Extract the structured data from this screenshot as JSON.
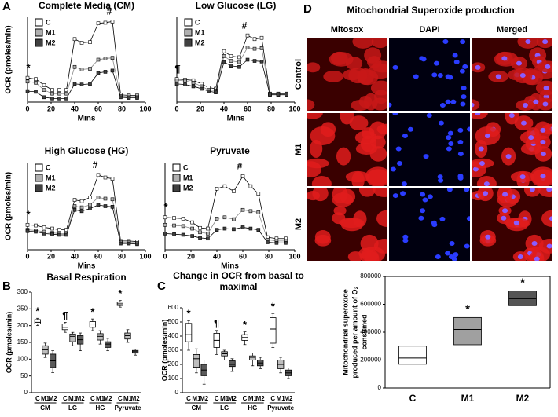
{
  "panel_labels": [
    "A",
    "B",
    "C",
    "D"
  ],
  "image_panel": {
    "title": "Mitochondrial Superoxide production",
    "columns": [
      "Mitosox",
      "DAPI",
      "Merged"
    ],
    "rows": [
      "Control",
      "M1",
      "M2"
    ]
  },
  "chart_data": [
    {
      "type": "line",
      "title": "Complete Media (CM)",
      "xlabel": "Mins",
      "ylabel": "OCR (pmoles/min)",
      "xlim": [
        0,
        100
      ],
      "xticks": [
        0,
        20,
        40,
        60,
        80,
        100
      ],
      "ylim": [
        0,
        700
      ],
      "x": [
        0,
        7,
        14,
        21,
        27,
        33,
        40,
        46,
        53,
        60,
        66,
        72,
        79,
        86,
        93
      ],
      "series": [
        {
          "name": "C",
          "color": "#ffffff",
          "values": [
            200,
            190,
            140,
            100,
            100,
            100,
            520,
            490,
            495,
            650,
            655,
            665,
            60,
            55,
            55
          ]
        },
        {
          "name": "M1",
          "color": "#b0b0b0",
          "values": [
            170,
            160,
            100,
            70,
            70,
            70,
            290,
            270,
            275,
            350,
            360,
            365,
            50,
            45,
            45
          ]
        },
        {
          "name": "M2",
          "color": "#404040",
          "values": [
            90,
            85,
            40,
            30,
            30,
            30,
            150,
            145,
            150,
            240,
            250,
            260,
            40,
            35,
            35
          ]
        }
      ],
      "start_marker": "*",
      "peak_marker": "#"
    },
    {
      "type": "line",
      "title": "Low Glucose (LG)",
      "xlabel": "Mins",
      "xlim": [
        0,
        100
      ],
      "xticks": [
        0,
        20,
        40,
        60,
        80,
        100
      ],
      "ylim": [
        0,
        700
      ],
      "x": [
        0,
        7,
        14,
        21,
        27,
        33,
        40,
        46,
        53,
        60,
        66,
        72,
        79,
        86,
        93
      ],
      "series": [
        {
          "name": "C",
          "color": "#ffffff",
          "values": [
            190,
            185,
            180,
            150,
            120,
            110,
            420,
            380,
            370,
            550,
            520,
            530,
            70,
            70,
            70
          ]
        },
        {
          "name": "M1",
          "color": "#b0b0b0",
          "values": [
            180,
            175,
            160,
            130,
            100,
            95,
            380,
            340,
            330,
            450,
            440,
            445,
            65,
            65,
            65
          ]
        },
        {
          "name": "M2",
          "color": "#404040",
          "values": [
            150,
            145,
            130,
            110,
            90,
            80,
            330,
            300,
            290,
            350,
            340,
            335,
            60,
            60,
            60
          ]
        }
      ],
      "start_marker": "¶",
      "peak_marker": "#"
    },
    {
      "type": "line",
      "title": "High Glucose (HG)",
      "xlabel": "Mins",
      "ylabel": "OCR (pmoles/min)",
      "xlim": [
        0,
        100
      ],
      "xticks": [
        0,
        20,
        40,
        60,
        80,
        100
      ],
      "ylim": [
        0,
        700
      ],
      "x": [
        0,
        7,
        14,
        21,
        27,
        33,
        40,
        46,
        53,
        60,
        66,
        72,
        79,
        86,
        93
      ],
      "series": [
        {
          "name": "C",
          "color": "#ffffff",
          "values": [
            200,
            195,
            180,
            170,
            160,
            160,
            400,
            390,
            420,
            600,
            580,
            570,
            70,
            70,
            65
          ]
        },
        {
          "name": "M1",
          "color": "#b0b0b0",
          "values": [
            160,
            155,
            145,
            135,
            130,
            130,
            350,
            340,
            360,
            420,
            410,
            405,
            60,
            60,
            55
          ]
        },
        {
          "name": "M2",
          "color": "#404040",
          "values": [
            150,
            145,
            130,
            125,
            120,
            120,
            320,
            310,
            330,
            360,
            350,
            345,
            50,
            50,
            45
          ]
        }
      ],
      "start_marker": "*",
      "peak_marker": "#"
    },
    {
      "type": "line",
      "title": "Pyruvate",
      "xlabel": "Mins",
      "xlim": [
        0,
        100
      ],
      "xticks": [
        0,
        20,
        40,
        60,
        80,
        100
      ],
      "ylim": [
        0,
        700
      ],
      "x": [
        0,
        7,
        14,
        21,
        27,
        33,
        40,
        46,
        53,
        60,
        66,
        72,
        79,
        86,
        93
      ],
      "series": [
        {
          "name": "C",
          "color": "#ffffff",
          "values": [
            260,
            255,
            250,
            220,
            175,
            170,
            490,
            510,
            470,
            590,
            510,
            450,
            100,
            90,
            90
          ]
        },
        {
          "name": "M1",
          "color": "#b0b0b0",
          "values": [
            200,
            195,
            190,
            170,
            140,
            130,
            250,
            260,
            245,
            320,
            310,
            300,
            80,
            70,
            70
          ]
        },
        {
          "name": "M2",
          "color": "#404040",
          "values": [
            130,
            125,
            120,
            110,
            95,
            90,
            160,
            170,
            165,
            180,
            170,
            160,
            60,
            55,
            55
          ]
        }
      ],
      "start_marker": "*",
      "peak_marker": "#"
    },
    {
      "type": "box",
      "title": "Basal Respiration",
      "ylabel": "OCR (pmoles/min)",
      "ylim": [
        0,
        300
      ],
      "yticks": [
        0,
        50,
        100,
        150,
        200,
        250,
        300
      ],
      "categories": [
        "CM",
        "LG",
        "HG",
        "Pyruvate"
      ],
      "annotations": [
        "*",
        "¶",
        "*",
        "*"
      ],
      "series": [
        {
          "name": "C",
          "color": "#ffffff",
          "boxes": [
            {
              "min": 200,
              "q1": 205,
              "median": 210,
              "q3": 218,
              "max": 222
            },
            {
              "min": 180,
              "q1": 188,
              "median": 195,
              "q3": 205,
              "max": 210
            },
            {
              "min": 185,
              "q1": 195,
              "median": 205,
              "q3": 212,
              "max": 220
            },
            {
              "min": 255,
              "q1": 260,
              "median": 265,
              "q3": 270,
              "max": 275
            }
          ]
        },
        {
          "name": "M1",
          "color": "#bdbdbd",
          "boxes": [
            {
              "min": 105,
              "q1": 115,
              "median": 128,
              "q3": 140,
              "max": 148
            },
            {
              "min": 140,
              "q1": 152,
              "median": 168,
              "q3": 175,
              "max": 180
            },
            {
              "min": 145,
              "q1": 157,
              "median": 168,
              "q3": 176,
              "max": 185
            },
            {
              "min": 150,
              "q1": 160,
              "median": 170,
              "q3": 178,
              "max": 188
            }
          ]
        },
        {
          "name": "M2",
          "color": "#5a5a5a",
          "boxes": [
            {
              "min": 60,
              "q1": 75,
              "median": 95,
              "q3": 115,
              "max": 125
            },
            {
              "min": 125,
              "q1": 145,
              "median": 158,
              "q3": 170,
              "max": 178
            },
            {
              "min": 125,
              "q1": 135,
              "median": 145,
              "q3": 152,
              "max": 162
            },
            {
              "min": 112,
              "q1": 118,
              "median": 122,
              "q3": 126,
              "max": 130
            }
          ]
        }
      ]
    },
    {
      "type": "box",
      "title": [
        "Change in OCR from basal to",
        "maximal"
      ],
      "ylabel": "OCR (pmoles/min)",
      "ylim": [
        0,
        600
      ],
      "yticks": [
        0,
        100,
        200,
        300,
        400,
        500,
        600
      ],
      "categories": [
        "CM",
        "LG",
        "HG",
        "Pyruvate"
      ],
      "annotations": [
        "*",
        "¶",
        "*",
        "*"
      ],
      "series": [
        {
          "name": "C",
          "color": "#ffffff",
          "boxes": [
            {
              "min": 300,
              "q1": 360,
              "median": 410,
              "q3": 490,
              "max": 510
            },
            {
              "min": 270,
              "q1": 320,
              "median": 370,
              "q3": 420,
              "max": 440
            },
            {
              "min": 340,
              "q1": 370,
              "median": 390,
              "q3": 410,
              "max": 430
            },
            {
              "min": 320,
              "q1": 350,
              "median": 450,
              "q3": 530,
              "max": 560
            }
          ]
        },
        {
          "name": "M1",
          "color": "#bdbdbd",
          "boxes": [
            {
              "min": 140,
              "q1": 180,
              "median": 240,
              "q3": 270,
              "max": 310
            },
            {
              "min": 230,
              "q1": 260,
              "median": 275,
              "q3": 290,
              "max": 300
            },
            {
              "min": 190,
              "q1": 230,
              "median": 250,
              "q3": 260,
              "max": 280
            },
            {
              "min": 140,
              "q1": 170,
              "median": 200,
              "q3": 230,
              "max": 250
            }
          ]
        },
        {
          "name": "M2",
          "color": "#5a5a5a",
          "boxes": [
            {
              "min": 60,
              "q1": 120,
              "median": 160,
              "q3": 200,
              "max": 230
            },
            {
              "min": 150,
              "q1": 185,
              "median": 200,
              "q3": 225,
              "max": 240
            },
            {
              "min": 170,
              "q1": 190,
              "median": 210,
              "q3": 230,
              "max": 250
            },
            {
              "min": 100,
              "q1": 120,
              "median": 140,
              "q3": 160,
              "max": 175
            }
          ]
        }
      ]
    },
    {
      "type": "floatbox",
      "ylabel": [
        "Mitochondrial  superoxide",
        "produced per amount of O₂",
        "consumed"
      ],
      "ylim": [
        0,
        800000
      ],
      "yticks": [
        0,
        200000,
        400000,
        600000,
        800000
      ],
      "categories": [
        "C",
        "M1",
        "M2"
      ],
      "colors": [
        "#ffffff",
        "#a0a0a0",
        "#555555"
      ],
      "annotations": [
        null,
        "*",
        "*"
      ],
      "boxes": [
        {
          "q1": 170000,
          "median": 215000,
          "q3": 300000
        },
        {
          "q1": 310000,
          "median": 420000,
          "q3": 505000
        },
        {
          "q1": 590000,
          "median": 640000,
          "q3": 695000
        }
      ]
    }
  ]
}
